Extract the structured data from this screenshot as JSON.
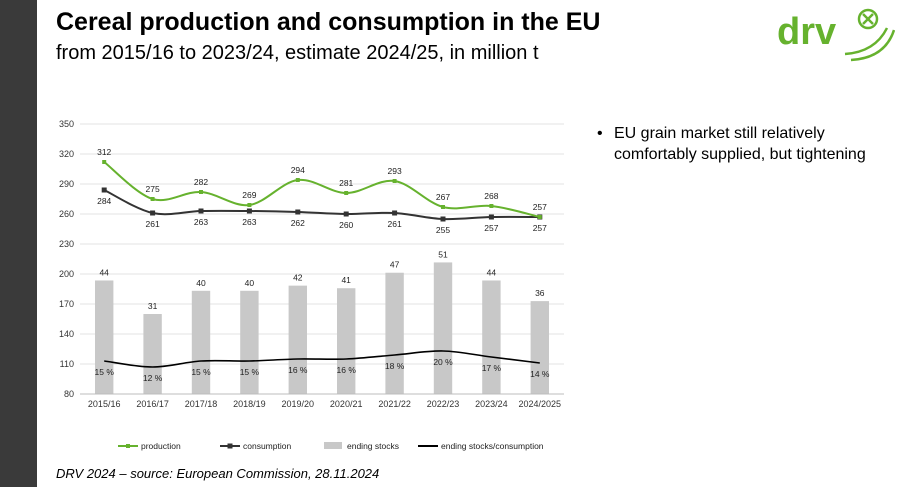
{
  "header": {
    "title": "Cereal production and consumption in the EU",
    "subtitle": "from 2015/16 to 2023/24, estimate 2024/25, in million t"
  },
  "logo": {
    "text": "drv",
    "icon": "cross-circle-icon",
    "color": "#66b22e"
  },
  "bullets": [
    "EU grain market still relatively comfortably supplied, but tightening"
  ],
  "footer": "DRV 2024 – source: European Commission, 28.11.2024",
  "chart_data": {
    "type": "bar",
    "categories": [
      "2015/16",
      "2016/17",
      "2017/18",
      "2018/19",
      "2019/20",
      "2020/21",
      "2021/22",
      "2022/23",
      "2023/24",
      "2024/2025"
    ],
    "ylim": [
      80,
      350
    ],
    "yticks": [
      80,
      110,
      140,
      170,
      200,
      230,
      260,
      290,
      320,
      350
    ],
    "grid": "horizontal",
    "legend_position": "bottom",
    "series": [
      {
        "name": "production",
        "type": "line",
        "color": "#66b22e",
        "values": [
          312,
          275,
          282,
          269,
          294,
          281,
          293,
          267,
          268,
          257
        ],
        "labels": [
          "312",
          "275",
          "282",
          "269",
          "294",
          "281",
          "293",
          "267",
          "268",
          "257"
        ]
      },
      {
        "name": "consumption",
        "type": "line",
        "color": "#333333",
        "values": [
          284,
          261,
          263,
          263,
          262,
          260,
          261,
          255,
          257,
          257
        ],
        "labels": [
          "284",
          "261",
          "263",
          "263",
          "262",
          "260",
          "261",
          "255",
          "257",
          "257"
        ]
      },
      {
        "name": "ending stocks",
        "type": "bar",
        "color": "#c8c8c8",
        "values": [
          44,
          31,
          40,
          40,
          42,
          41,
          47,
          51,
          44,
          36
        ],
        "labels": [
          "44",
          "31",
          "40",
          "40",
          "42",
          "41",
          "47",
          "51",
          "44",
          "36"
        ]
      },
      {
        "name": "ending stocks/consumption",
        "type": "line",
        "color": "#000000",
        "values": [
          15,
          12,
          15,
          15,
          16,
          16,
          18,
          20,
          17,
          14
        ],
        "labels": [
          "15 %",
          "12 %",
          "15 %",
          "15 %",
          "16 %",
          "16 %",
          "18 %",
          "20 %",
          "17 %",
          "14 %"
        ]
      }
    ]
  }
}
